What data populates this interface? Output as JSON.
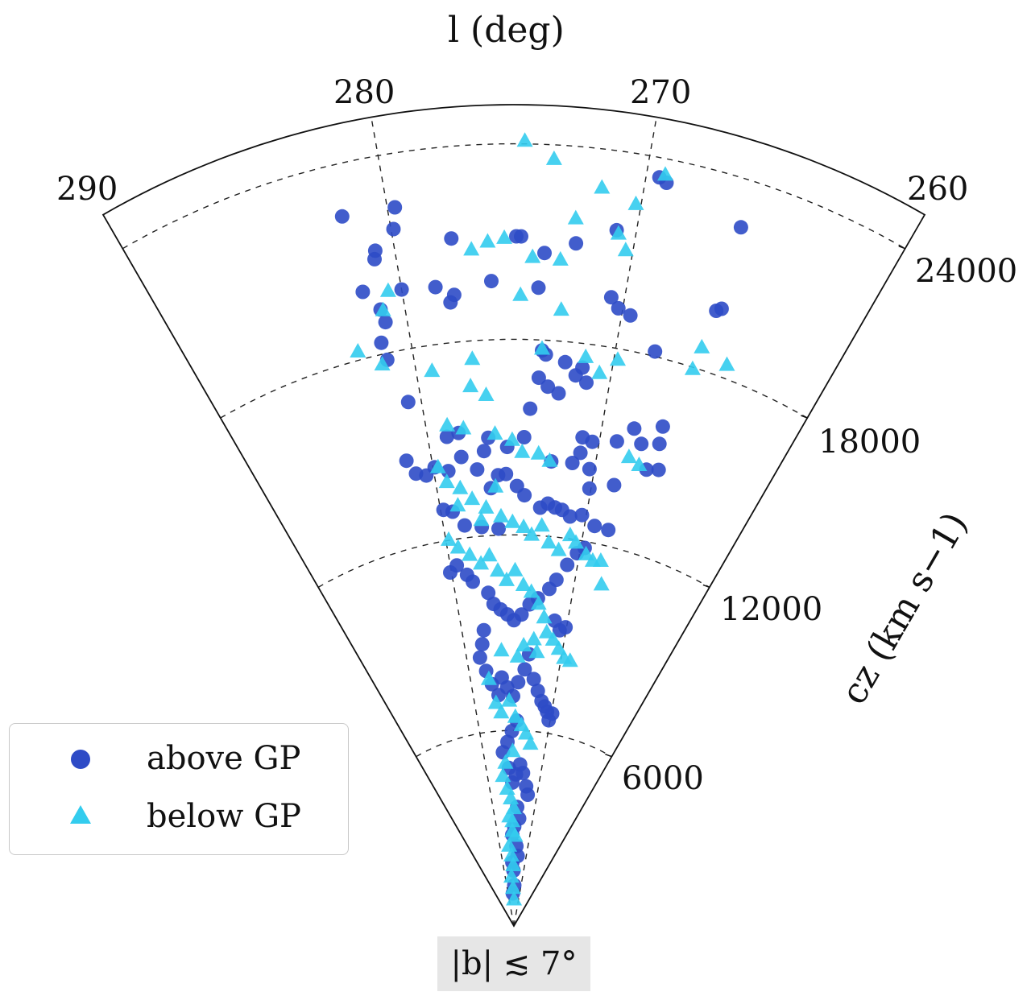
{
  "chart_data": {
    "type": "scatter",
    "projection": "polar-wedge",
    "title": "",
    "xlabel": "l (deg)",
    "ylabel": "cz (km s−1)",
    "annotation": "|b| ≲ 7°",
    "l_range": [
      260,
      290
    ],
    "cz_range": [
      0,
      25200
    ],
    "l_ticks": [
      290,
      280,
      270,
      260
    ],
    "cz_ticks": [
      6000,
      12000,
      18000,
      24000
    ],
    "grid": true,
    "legend_position": "lower left",
    "series": [
      {
        "name": "above GP",
        "marker": "circle",
        "color": "#2e4bc6",
        "points": [
          [
            281.8,
            22400
          ],
          [
            279.7,
            22350
          ],
          [
            279.9,
            21700
          ],
          [
            280.8,
            21150
          ],
          [
            280.9,
            20900
          ],
          [
            281.7,
            20000
          ],
          [
            280.0,
            19830
          ],
          [
            281.1,
            19350
          ],
          [
            281.4,
            18350
          ],
          [
            281.0,
            18940
          ],
          [
            277.6,
            21180
          ],
          [
            274.9,
            21160
          ],
          [
            274.7,
            21160
          ],
          [
            273.7,
            20670
          ],
          [
            272.4,
            21030
          ],
          [
            270.8,
            21580
          ],
          [
            269.5,
            23400
          ],
          [
            269.2,
            23280
          ],
          [
            266.0,
            22540
          ],
          [
            265.7,
            19980
          ],
          [
            265.9,
            19870
          ],
          [
            278.5,
            19750
          ],
          [
            277.7,
            19450
          ],
          [
            277.9,
            19230
          ],
          [
            276.0,
            19800
          ],
          [
            273.9,
            19600
          ],
          [
            270.6,
            19520
          ],
          [
            270.2,
            19220
          ],
          [
            269.6,
            19070
          ],
          [
            268.1,
            18150
          ],
          [
            273.6,
            17680
          ],
          [
            273.4,
            17560
          ],
          [
            272.4,
            17370
          ],
          [
            271.5,
            17260
          ],
          [
            271.8,
            17000
          ],
          [
            271.2,
            16820
          ],
          [
            272.6,
            16400
          ],
          [
            273.2,
            16580
          ],
          [
            273.7,
            16840
          ],
          [
            274.1,
            15880
          ],
          [
            281.3,
            17800
          ],
          [
            280.7,
            16400
          ],
          [
            278.9,
            15150
          ],
          [
            278.2,
            15220
          ],
          [
            276.5,
            15000
          ],
          [
            276.8,
            14600
          ],
          [
            275.4,
            14700
          ],
          [
            274.4,
            15000
          ],
          [
            271.0,
            15140
          ],
          [
            270.4,
            15050
          ],
          [
            269.0,
            15200
          ],
          [
            268.2,
            15700
          ],
          [
            267.6,
            15300
          ],
          [
            266.7,
            15990
          ],
          [
            266.6,
            15450
          ],
          [
            266.9,
            14580
          ],
          [
            266.2,
            14680
          ],
          [
            268.6,
            13870
          ],
          [
            270.3,
            14210
          ],
          [
            271.4,
            14320
          ],
          [
            272.7,
            14300
          ],
          [
            271.0,
            14660
          ],
          [
            270.1,
            13620
          ],
          [
            281.5,
            14650
          ],
          [
            281.1,
            14200
          ],
          [
            280.5,
            14080
          ],
          [
            279.9,
            14280
          ],
          [
            279.1,
            14100
          ],
          [
            278.2,
            14480
          ],
          [
            277.3,
            14050
          ],
          [
            276.5,
            13450
          ],
          [
            276.0,
            13840
          ],
          [
            275.5,
            13870
          ],
          [
            274.8,
            13500
          ],
          [
            274.3,
            13220
          ],
          [
            273.2,
            12860
          ],
          [
            272.7,
            13000
          ],
          [
            272.2,
            12900
          ],
          [
            271.7,
            12850
          ],
          [
            271.1,
            12680
          ],
          [
            270.3,
            12780
          ],
          [
            269.3,
            12520
          ],
          [
            268.3,
            12490
          ],
          [
            279.8,
            12950
          ],
          [
            279.2,
            12850
          ],
          [
            278.5,
            12380
          ],
          [
            277.3,
            12280
          ],
          [
            276.1,
            12200
          ],
          [
            280.1,
            11020
          ],
          [
            279.5,
            11200
          ],
          [
            278.8,
            10870
          ],
          [
            278.4,
            10640
          ],
          [
            277.2,
            10250
          ],
          [
            276.8,
            9900
          ],
          [
            276.2,
            9720
          ],
          [
            275.6,
            9560
          ],
          [
            275.0,
            9380
          ],
          [
            274.3,
            9560
          ],
          [
            273.6,
            9880
          ],
          [
            272.9,
            10080
          ],
          [
            272.0,
            10400
          ],
          [
            271.5,
            10700
          ],
          [
            270.8,
            11200
          ],
          [
            270.2,
            11600
          ],
          [
            269.7,
            11800
          ],
          [
            271.2,
            9450
          ],
          [
            270.6,
            9180
          ],
          [
            270.1,
            9300
          ],
          [
            277.9,
            9120
          ],
          [
            278.2,
            8700
          ],
          [
            278.6,
            8300
          ],
          [
            278.1,
            7870
          ],
          [
            277.6,
            7450
          ],
          [
            276.9,
            7100
          ],
          [
            276.4,
            7630
          ],
          [
            275.8,
            7320
          ],
          [
            275.1,
            7050
          ],
          [
            274.5,
            7480
          ],
          [
            273.8,
            7880
          ],
          [
            273.4,
            8350
          ],
          [
            272.7,
            7600
          ],
          [
            272.1,
            7250
          ],
          [
            271.5,
            6950
          ],
          [
            271.0,
            6800
          ],
          [
            270.6,
            6650
          ],
          [
            270.2,
            6400
          ],
          [
            269.9,
            6620
          ],
          [
            274.6,
            6300
          ],
          [
            275.3,
            5980
          ],
          [
            276.0,
            5650
          ],
          [
            276.8,
            5340
          ],
          [
            275.9,
            4850
          ],
          [
            275.3,
            4400
          ],
          [
            274.6,
            4650
          ],
          [
            273.9,
            4960
          ],
          [
            273.3,
            4700
          ],
          [
            272.5,
            4300
          ],
          [
            272.0,
            4050
          ],
          [
            274.2,
            3650
          ],
          [
            273.6,
            3300
          ],
          [
            274.9,
            3050
          ],
          [
            275.5,
            2800
          ],
          [
            274.1,
            2450
          ],
          [
            273.5,
            2150
          ],
          [
            275.7,
            1950
          ],
          [
            275.2,
            1700
          ],
          [
            274.7,
            1250
          ],
          [
            275.9,
            1000
          ]
        ]
      },
      {
        "name": "below GP",
        "marker": "triangle",
        "color": "#33ccee",
        "points": [
          [
            274.6,
            24080
          ],
          [
            273.5,
            23550
          ],
          [
            271.6,
            22800
          ],
          [
            270.2,
            22450
          ],
          [
            269.3,
            23500
          ],
          [
            272.5,
            21780
          ],
          [
            270.7,
            21470
          ],
          [
            276.1,
            21000
          ],
          [
            276.8,
            20780
          ],
          [
            275.4,
            21100
          ],
          [
            274.2,
            20520
          ],
          [
            273.0,
            20480
          ],
          [
            270.3,
            21000
          ],
          [
            280.6,
            19850
          ],
          [
            281.0,
            19300
          ],
          [
            274.7,
            19350
          ],
          [
            272.8,
            18950
          ],
          [
            273.6,
            17720
          ],
          [
            271.4,
            17580
          ],
          [
            269.8,
            17650
          ],
          [
            270.6,
            17150
          ],
          [
            266.1,
            17930
          ],
          [
            266.0,
            18650
          ],
          [
            264.6,
            18400
          ],
          [
            282.6,
            18250
          ],
          [
            281.6,
            17680
          ],
          [
            279.2,
            17200
          ],
          [
            277.1,
            17430
          ],
          [
            277.3,
            16600
          ],
          [
            276.5,
            16300
          ],
          [
            278.8,
            15480
          ],
          [
            277.9,
            15330
          ],
          [
            276.1,
            15100
          ],
          [
            275.1,
            14900
          ],
          [
            274.5,
            14530
          ],
          [
            273.5,
            14500
          ],
          [
            272.8,
            14300
          ],
          [
            268.1,
            14800
          ],
          [
            267.4,
            14640
          ],
          [
            279.7,
            14250
          ],
          [
            279.3,
            13760
          ],
          [
            276.2,
            13480
          ],
          [
            276.9,
            12850
          ],
          [
            277.8,
            13150
          ],
          [
            278.5,
            13520
          ],
          [
            278.8,
            13000
          ],
          [
            277.3,
            12480
          ],
          [
            275.9,
            12560
          ],
          [
            275.1,
            12380
          ],
          [
            274.3,
            12230
          ],
          [
            273.7,
            12000
          ],
          [
            273.0,
            12300
          ],
          [
            272.4,
            11800
          ],
          [
            271.6,
            11600
          ],
          [
            270.9,
            12100
          ],
          [
            270.4,
            11900
          ],
          [
            269.5,
            11600
          ],
          [
            268.9,
            11450
          ],
          [
            268.3,
            11500
          ],
          [
            267.8,
            10800
          ],
          [
            279.8,
            12000
          ],
          [
            279.2,
            11720
          ],
          [
            278.4,
            11450
          ],
          [
            277.6,
            11150
          ],
          [
            276.9,
            11380
          ],
          [
            276.3,
            10900
          ],
          [
            275.6,
            10600
          ],
          [
            274.9,
            10900
          ],
          [
            274.2,
            10450
          ],
          [
            273.5,
            10250
          ],
          [
            272.8,
            9900
          ],
          [
            272.2,
            9500
          ],
          [
            271.8,
            9050
          ],
          [
            271.1,
            8850
          ],
          [
            270.4,
            8600
          ],
          [
            269.7,
            8350
          ],
          [
            269.0,
            8300
          ],
          [
            273.0,
            8800
          ],
          [
            272.6,
            8420
          ],
          [
            274.0,
            8600
          ],
          [
            274.6,
            8250
          ],
          [
            276.3,
            8450
          ],
          [
            277.9,
            7600
          ],
          [
            277.3,
            6850
          ],
          [
            276.7,
            6550
          ],
          [
            275.6,
            6900
          ],
          [
            274.8,
            6400
          ],
          [
            273.9,
            6150
          ],
          [
            273.2,
            5900
          ],
          [
            272.4,
            5600
          ],
          [
            275.2,
            5350
          ],
          [
            276.5,
            5000
          ],
          [
            277.1,
            4600
          ],
          [
            276.4,
            4200
          ],
          [
            275.7,
            3900
          ],
          [
            275.0,
            3600
          ],
          [
            276.2,
            3350
          ],
          [
            275.5,
            2900
          ],
          [
            276.7,
            2450
          ],
          [
            276.0,
            2150
          ],
          [
            275.3,
            1850
          ],
          [
            276.4,
            1500
          ],
          [
            275.6,
            1150
          ],
          [
            274.9,
            800
          ],
          [
            275.4,
            3200
          ],
          [
            274.6,
            2750
          ]
        ]
      }
    ]
  },
  "labels": {
    "x_axis_title": "l (deg)",
    "y_axis_title": "cz (km s−1)",
    "latitude_note": "|b| ≲ 7°",
    "l_tick_290": "290",
    "l_tick_280": "280",
    "l_tick_270": "270",
    "l_tick_260": "260",
    "cz_tick_6000": "6000",
    "cz_tick_12000": "12000",
    "cz_tick_18000": "18000",
    "cz_tick_24000": "24000"
  },
  "legend": {
    "items": [
      {
        "label": "above GP",
        "marker": "circle",
        "color": "#2e4bc6"
      },
      {
        "label": "below GP",
        "marker": "triangle",
        "color": "#33ccee"
      }
    ]
  }
}
